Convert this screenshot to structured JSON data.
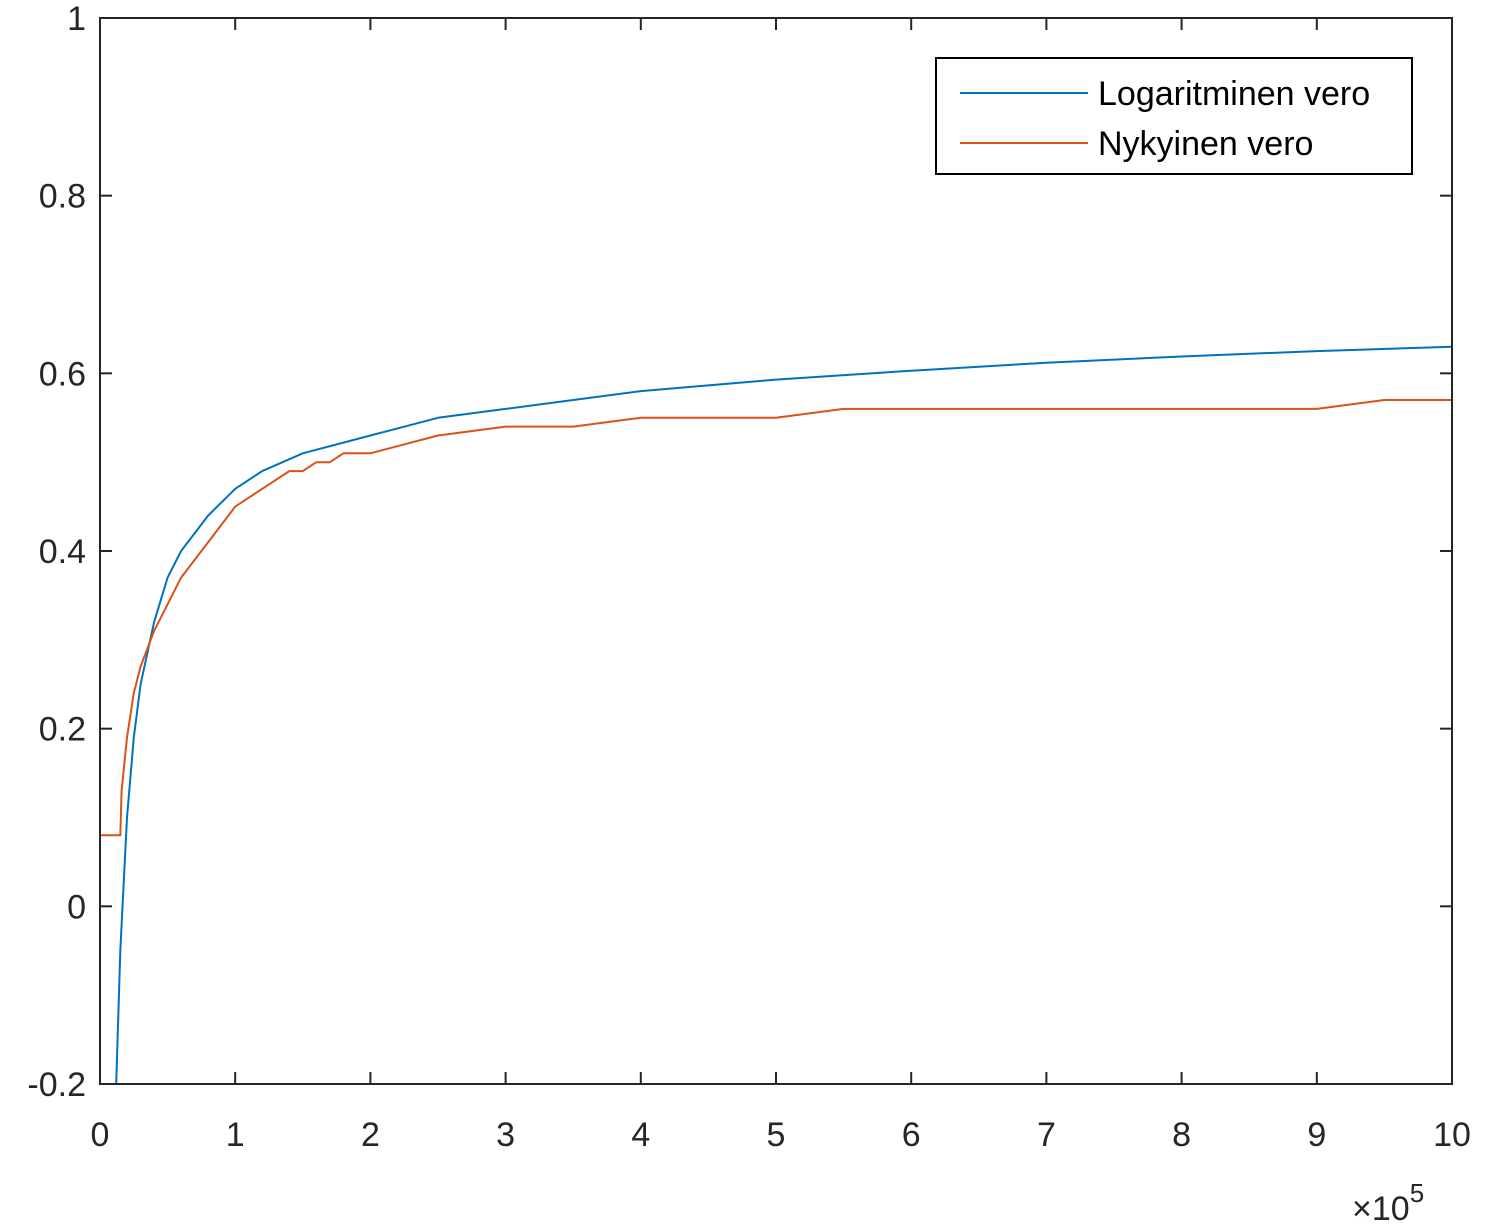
{
  "chart_data": {
    "type": "line",
    "title": "",
    "xlabel": "",
    "ylabel": "",
    "x_exponent_label": "×10",
    "x_exponent_power": "5",
    "xlim": [
      0,
      10
    ],
    "ylim": [
      -0.2,
      1
    ],
    "xticks": [
      "0",
      "1",
      "2",
      "3",
      "4",
      "5",
      "6",
      "7",
      "8",
      "9",
      "10"
    ],
    "yticks": [
      "-0.2",
      "0",
      "0.2",
      "0.4",
      "0.6",
      "0.8",
      "1"
    ],
    "grid": false,
    "legend_position": "top-right",
    "series": [
      {
        "name": "Logaritminen vero",
        "color": "#0072BD",
        "x": [
          0.12,
          0.15,
          0.2,
          0.25,
          0.3,
          0.4,
          0.5,
          0.6,
          0.8,
          1.0,
          1.2,
          1.5,
          2.0,
          2.5,
          3.0,
          3.5,
          4.0,
          5.0,
          6.0,
          7.0,
          8.0,
          9.0,
          10.0
        ],
        "y": [
          -0.2,
          -0.05,
          0.1,
          0.19,
          0.25,
          0.32,
          0.37,
          0.4,
          0.44,
          0.47,
          0.49,
          0.51,
          0.53,
          0.55,
          0.56,
          0.57,
          0.58,
          0.593,
          0.603,
          0.612,
          0.619,
          0.625,
          0.63
        ]
      },
      {
        "name": "Nykyinen vero",
        "color": "#D95319",
        "x": [
          0.0,
          0.15,
          0.16,
          0.2,
          0.25,
          0.3,
          0.4,
          0.5,
          0.6,
          0.7,
          0.8,
          0.9,
          1.0,
          1.1,
          1.2,
          1.3,
          1.4,
          1.5,
          1.6,
          1.7,
          1.8,
          2.0,
          2.5,
          3.0,
          3.5,
          4.0,
          4.5,
          5.0,
          5.5,
          6.0,
          7.0,
          8.0,
          9.0,
          9.5,
          10.0
        ],
        "y": [
          0.08,
          0.08,
          0.13,
          0.19,
          0.24,
          0.27,
          0.31,
          0.34,
          0.37,
          0.39,
          0.41,
          0.43,
          0.45,
          0.46,
          0.47,
          0.48,
          0.49,
          0.49,
          0.5,
          0.5,
          0.51,
          0.51,
          0.53,
          0.54,
          0.54,
          0.55,
          0.55,
          0.55,
          0.56,
          0.56,
          0.56,
          0.56,
          0.56,
          0.57,
          0.57
        ]
      }
    ]
  }
}
